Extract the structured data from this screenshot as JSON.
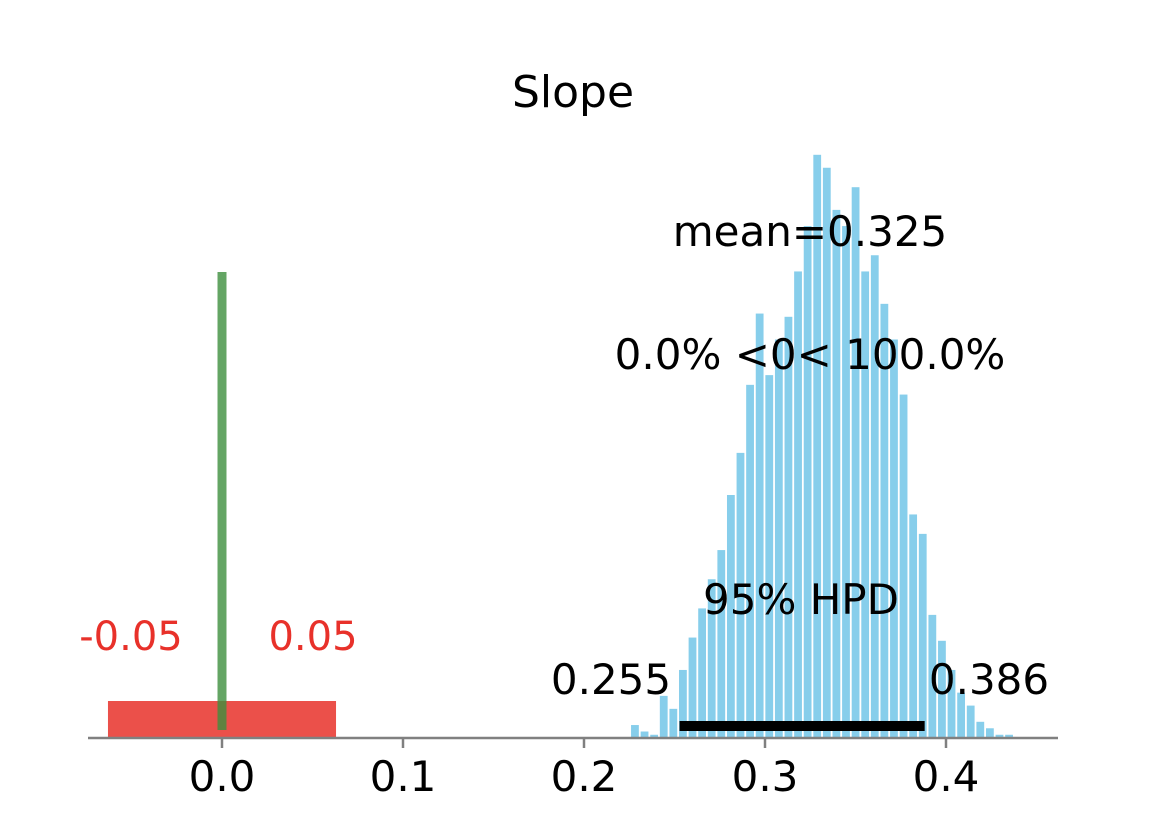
{
  "chart_data": {
    "type": "bar",
    "title": "Slope",
    "xlabel": "",
    "ylabel": "",
    "xlim": [
      -0.075,
      0.46
    ],
    "xticks": [
      {
        "value": 0.0,
        "label": "0.0"
      },
      {
        "value": 0.1,
        "label": "0.1"
      },
      {
        "value": 0.2,
        "label": "0.2"
      },
      {
        "value": 0.3,
        "label": "0.3"
      },
      {
        "value": 0.4,
        "label": "0.4"
      }
    ],
    "hist_color": "#87ceeb",
    "histogram": {
      "bin_start": 0.2255,
      "bin_width": 0.0053,
      "counts": [
        4,
        2,
        1,
        13,
        9,
        21,
        31,
        40,
        49,
        58,
        75,
        88,
        109,
        131,
        112,
        123,
        130,
        144,
        158,
        180,
        176,
        163,
        158,
        170,
        144,
        149,
        134,
        123,
        106,
        69,
        63,
        38,
        30,
        21,
        14,
        10,
        5,
        3,
        1,
        1
      ]
    },
    "mean": {
      "value": 0.325,
      "label": "mean=0.325"
    },
    "ref": {
      "value": 0,
      "label": "0.0% <0< 100.0%",
      "color": "#3d8f3d"
    },
    "rope": {
      "low": -0.05,
      "high": 0.05,
      "low_label": "-0.05",
      "high_label": "0.05",
      "color": "#e8312a"
    },
    "hpd": {
      "label": "95% HPD",
      "low": 0.255,
      "high": 0.386,
      "low_label": "0.255",
      "high_label": "0.386"
    }
  }
}
